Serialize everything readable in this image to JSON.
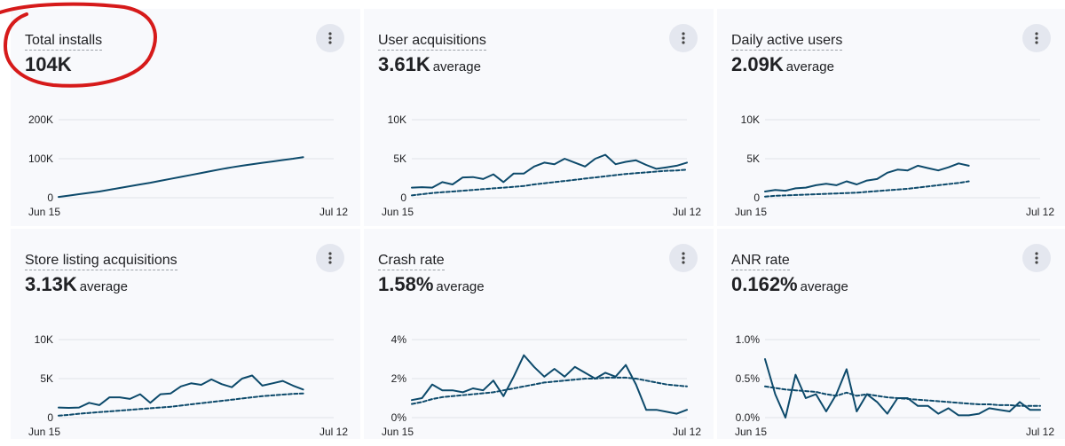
{
  "colors": {
    "line": "#0d4a6b",
    "grid": "#dfe2e7",
    "card_bg": "#f8f9fc",
    "annotation": "#d61a1a"
  },
  "cards": [
    {
      "title": "Total installs",
      "value": "104K",
      "suffix": "",
      "menu_icon": "more-vert-icon",
      "chart_data": {
        "type": "line",
        "y_tick_labels": [
          "200K",
          "100K",
          "0"
        ],
        "ylim": [
          0,
          200000
        ],
        "x_start_label": "Jun 15",
        "x_end_label": "Jul 12",
        "x_count": 28,
        "series": [
          {
            "style": "solid",
            "values": [
              2000,
              5500,
              9000,
              12500,
              16000,
              20500,
              25000,
              29500,
              34000,
              38500,
              43500,
              48500,
              53500,
              58500,
              63500,
              68500,
              73500,
              78000,
              82000,
              86000,
              89500,
              93000,
              96500,
              100000,
              104000
            ]
          }
        ]
      }
    },
    {
      "title": "User acquisitions",
      "value": "3.61K",
      "suffix": "average",
      "menu_icon": "more-vert-icon",
      "chart_data": {
        "type": "line",
        "y_tick_labels": [
          "10K",
          "5K",
          "0"
        ],
        "ylim": [
          0,
          10000
        ],
        "x_start_label": "Jun 15",
        "x_end_label": "Jul 12",
        "x_count": 28,
        "series": [
          {
            "style": "solid",
            "values": [
              1300,
              1350,
              1300,
              2000,
              1700,
              2600,
              2650,
              2400,
              3000,
              2000,
              3100,
              3100,
              4000,
              4500,
              4300,
              5000,
              4500,
              4000,
              5000,
              5500,
              4300,
              4600,
              4800,
              4200,
              3700,
              3900,
              4100,
              4500
            ]
          },
          {
            "style": "dashed",
            "values": [
              300,
              450,
              600,
              700,
              800,
              900,
              1000,
              1100,
              1200,
              1300,
              1400,
              1500,
              1700,
              1850,
              2000,
              2150,
              2300,
              2450,
              2600,
              2750,
              2900,
              3050,
              3150,
              3250,
              3350,
              3450,
              3500,
              3600
            ]
          }
        ]
      }
    },
    {
      "title": "Daily active users",
      "value": "2.09K",
      "suffix": "average",
      "menu_icon": "more-vert-icon",
      "chart_data": {
        "type": "line",
        "y_tick_labels": [
          "10K",
          "5K",
          "0"
        ],
        "ylim": [
          0,
          10000
        ],
        "x_start_label": "Jun 15",
        "x_end_label": "Jul 12",
        "x_count": 28,
        "series": [
          {
            "style": "solid",
            "values": [
              800,
              1000,
              900,
              1200,
              1300,
              1600,
              1800,
              1600,
              2100,
              1700,
              2200,
              2400,
              3200,
              3600,
              3500,
              4100,
              3800,
              3500,
              3900,
              4400,
              4100
            ]
          },
          {
            "style": "dashed",
            "values": [
              150,
              250,
              300,
              350,
              400,
              450,
              500,
              550,
              600,
              650,
              750,
              850,
              950,
              1050,
              1150,
              1300,
              1450,
              1600,
              1750,
              1900,
              2100
            ]
          }
        ]
      }
    },
    {
      "title": "Store listing acquisitions",
      "value": "3.13K",
      "suffix": "average",
      "menu_icon": "more-vert-icon",
      "chart_data": {
        "type": "line",
        "y_tick_labels": [
          "10K",
          "5K",
          "0"
        ],
        "ylim": [
          0,
          10000
        ],
        "x_start_label": "Jun 15",
        "x_end_label": "Jul 12",
        "x_count": 28,
        "series": [
          {
            "style": "solid",
            "values": [
              1300,
              1250,
              1300,
              1900,
              1600,
              2600,
              2600,
              2400,
              3000,
              1900,
              3000,
              3100,
              4000,
              4400,
              4200,
              4900,
              4300,
              3900,
              5000,
              5400,
              4100,
              4400,
              4700,
              4100,
              3600
            ]
          },
          {
            "style": "dashed",
            "values": [
              250,
              350,
              500,
              600,
              700,
              800,
              900,
              1000,
              1100,
              1200,
              1300,
              1400,
              1550,
              1700,
              1850,
              2000,
              2150,
              2300,
              2450,
              2600,
              2750,
              2850,
              2950,
              3050,
              3100
            ]
          }
        ]
      }
    },
    {
      "title": "Crash rate",
      "value": "1.58%",
      "suffix": "average",
      "menu_icon": "more-vert-icon",
      "chart_data": {
        "type": "line",
        "y_tick_labels": [
          "4%",
          "2%",
          "0%"
        ],
        "ylim": [
          0,
          4
        ],
        "x_start_label": "Jun 15",
        "x_end_label": "Jul 12",
        "x_count": 28,
        "series": [
          {
            "style": "solid",
            "values": [
              0.9,
              1.0,
              1.7,
              1.4,
              1.4,
              1.3,
              1.5,
              1.4,
              1.9,
              1.1,
              2.1,
              3.2,
              2.6,
              2.1,
              2.5,
              2.1,
              2.6,
              2.3,
              2.0,
              2.3,
              2.1,
              2.7,
              1.7,
              0.4,
              0.4,
              0.3,
              0.2,
              0.4
            ]
          },
          {
            "style": "dashed",
            "values": [
              0.7,
              0.8,
              0.95,
              1.05,
              1.1,
              1.15,
              1.2,
              1.25,
              1.3,
              1.4,
              1.5,
              1.6,
              1.7,
              1.8,
              1.85,
              1.9,
              1.95,
              2.0,
              2.0,
              2.05,
              2.05,
              2.05,
              2.0,
              1.9,
              1.8,
              1.7,
              1.65,
              1.6
            ]
          }
        ]
      }
    },
    {
      "title": "ANR rate",
      "value": "0.162%",
      "suffix": "average",
      "menu_icon": "more-vert-icon",
      "chart_data": {
        "type": "line",
        "y_tick_labels": [
          "1.0%",
          "0.5%",
          "0.0%"
        ],
        "ylim": [
          0,
          1.0
        ],
        "x_start_label": "Jun 15",
        "x_end_label": "Jul 12",
        "x_count": 28,
        "series": [
          {
            "style": "solid",
            "values": [
              0.75,
              0.3,
              0.0,
              0.55,
              0.25,
              0.3,
              0.08,
              0.3,
              0.62,
              0.08,
              0.3,
              0.2,
              0.05,
              0.25,
              0.25,
              0.15,
              0.15,
              0.05,
              0.12,
              0.03,
              0.03,
              0.05,
              0.12,
              0.1,
              0.08,
              0.2,
              0.1,
              0.1
            ]
          },
          {
            "style": "dashed",
            "values": [
              0.4,
              0.38,
              0.36,
              0.35,
              0.34,
              0.33,
              0.3,
              0.28,
              0.32,
              0.28,
              0.3,
              0.28,
              0.26,
              0.25,
              0.24,
              0.23,
              0.22,
              0.21,
              0.2,
              0.19,
              0.18,
              0.17,
              0.17,
              0.16,
              0.16,
              0.15,
              0.15,
              0.15
            ]
          }
        ]
      }
    }
  ]
}
